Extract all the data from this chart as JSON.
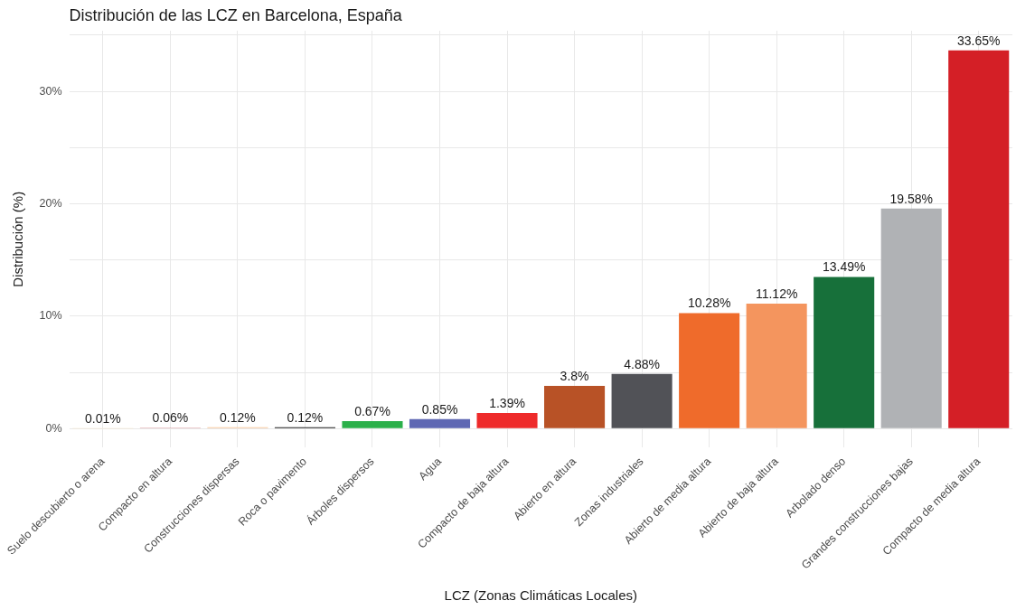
{
  "chart_data": {
    "type": "bar",
    "title": "Distribución de las LCZ en Barcelona, España",
    "xlabel": "LCZ (Zonas Climáticas Locales)",
    "ylabel": "Distribución (%)",
    "categories": [
      "Suelo descubierto o arena",
      "Compacto en altura",
      "Construcciones dispersas",
      "Roca o pavimento",
      "Árboles dispersos",
      "Agua",
      "Compacto de baja altura",
      "Abierto en altura",
      "Zonas industriales",
      "Abierto de media altura",
      "Abierto de baja altura",
      "Arbolado denso",
      "Grandes construcciones bajas",
      "Compacto de media altura"
    ],
    "values": [
      0.01,
      0.06,
      0.12,
      0.12,
      0.67,
      0.85,
      1.39,
      3.8,
      4.88,
      10.28,
      11.12,
      13.49,
      19.58,
      33.65
    ],
    "value_labels": [
      "0.01%",
      "0.06%",
      "0.12%",
      "0.12%",
      "0.67%",
      "0.85%",
      "1.39%",
      "3.8%",
      "4.88%",
      "10.28%",
      "11.12%",
      "13.49%",
      "19.58%",
      "33.65%"
    ],
    "colors": [
      "#f6e7c9",
      "#b8363d",
      "#f7c9a0",
      "#222222",
      "#2bb04a",
      "#5e67b3",
      "#ee2a2a",
      "#b85226",
      "#515257",
      "#ef6b2b",
      "#f4955e",
      "#17703a",
      "#b0b2b5",
      "#d41f26"
    ],
    "ylim": [
      -1.7,
      35.4
    ],
    "yticks": [
      {
        "value": 0,
        "label": "0%"
      },
      {
        "value": 5,
        "label": null
      },
      {
        "value": 10,
        "label": "10%"
      },
      {
        "value": 15,
        "label": null
      },
      {
        "value": 20,
        "label": "20%"
      },
      {
        "value": 25,
        "label": null
      },
      {
        "value": 30,
        "label": "30%"
      },
      {
        "value": 35,
        "label": null
      }
    ],
    "grid": true
  }
}
